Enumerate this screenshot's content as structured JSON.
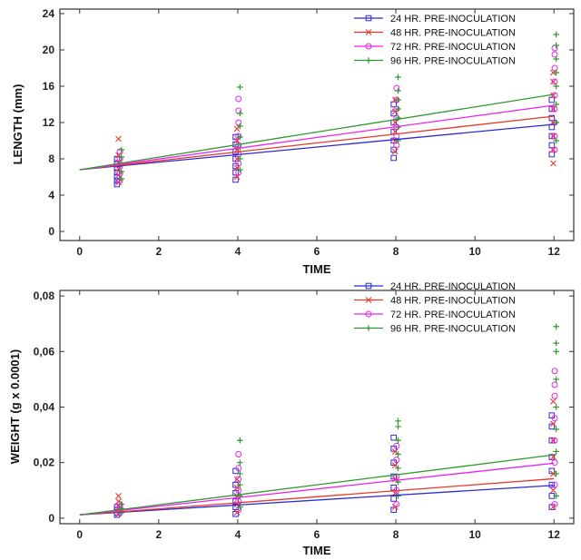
{
  "chart_data": [
    {
      "type": "scatter",
      "title": "",
      "xlabel": "TIME",
      "ylabel": "LENGTH (mm)",
      "xlim": [
        -0.5,
        12.5
      ],
      "ylim": [
        -1,
        24.5
      ],
      "xticks": [
        "0",
        "2",
        "4",
        "6",
        "8",
        "10",
        "12"
      ],
      "yticks": [
        "0",
        "4",
        "8",
        "12",
        "16",
        "20",
        "24"
      ],
      "legend_position": "top-right",
      "x_groups": [
        1,
        4,
        8,
        12
      ],
      "series": [
        {
          "name": "24 HR. PRE-INOCULATION",
          "color": "#2b2bd6",
          "marker": "square",
          "fit": {
            "x": [
              0,
              12
            ],
            "y": [
              6.8,
              11.8
            ]
          },
          "points": {
            "1": [
              5.2,
              5.6,
              6.0,
              6.5,
              7.0,
              7.4,
              8.0
            ],
            "4": [
              5.7,
              6.5,
              7.2,
              8.0,
              8.8,
              9.6,
              10.4
            ],
            "8": [
              8.1,
              9.0,
              10.0,
              11.0,
              12.0,
              13.0,
              14.0
            ],
            "12": [
              8.5,
              9.5,
              10.5,
              11.5,
              12.5,
              13.5,
              14.5
            ]
          }
        },
        {
          "name": "48 HR. PRE-INOCULATION",
          "color": "#e8382a",
          "marker": "x",
          "fit": {
            "x": [
              0,
              12
            ],
            "y": [
              6.8,
              12.7
            ]
          },
          "points": {
            "1": [
              5.4,
              6.2,
              6.9,
              7.6,
              8.4,
              10.2
            ],
            "4": [
              6.0,
              7.0,
              8.0,
              9.0,
              10.0,
              11.3
            ],
            "8": [
              8.8,
              10.0,
              11.0,
              12.0,
              13.2,
              14.5
            ],
            "12": [
              7.5,
              9.0,
              10.5,
              12.0,
              13.5,
              15.0,
              16.5,
              17.5
            ]
          }
        },
        {
          "name": "72 HR. PRE-INOCULATION",
          "color": "#ee22ee",
          "marker": "circle",
          "fit": {
            "x": [
              0,
              12
            ],
            "y": [
              6.8,
              13.9
            ]
          },
          "points": {
            "1": [
              5.6,
              6.4,
              7.2,
              8.0,
              8.8
            ],
            "4": [
              6.5,
              7.5,
              8.5,
              9.5,
              10.5,
              12.0,
              13.3,
              14.6
            ],
            "8": [
              9.5,
              10.5,
              11.5,
              12.5,
              13.5,
              14.5,
              15.8
            ],
            "12": [
              9.0,
              10.5,
              12.0,
              13.5,
              15.0,
              16.5,
              18.0,
              19.5,
              20.2
            ]
          }
        },
        {
          "name": "96 HR. PRE-INOCULATION",
          "color": "#2e9a2e",
          "marker": "plus",
          "fit": {
            "x": [
              0,
              12
            ],
            "y": [
              6.8,
              15.1
            ]
          },
          "points": {
            "1": [
              5.8,
              6.6,
              7.4,
              8.2,
              9.0
            ],
            "4": [
              6.8,
              8.0,
              9.2,
              10.4,
              11.6,
              13.0,
              15.9
            ],
            "8": [
              10.0,
              11.5,
              12.5,
              13.5,
              14.5,
              15.5,
              17.0
            ],
            "12": [
              10.0,
              12.0,
              14.0,
              16.0,
              17.5,
              19.0,
              20.5,
              21.7
            ]
          }
        }
      ]
    },
    {
      "type": "scatter",
      "title": "",
      "xlabel": "TIME",
      "ylabel": "WEIGHT (g x 0.0001)",
      "xlim": [
        -0.5,
        12.5
      ],
      "ylim": [
        -0.002,
        0.082
      ],
      "xticks": [
        "0",
        "2",
        "4",
        "6",
        "8",
        "10",
        "12"
      ],
      "yticks": [
        "0",
        "0,02",
        "0,04",
        "0,06",
        "0,08"
      ],
      "legend_position": "top-right",
      "x_groups": [
        1,
        4,
        8,
        12
      ],
      "series": [
        {
          "name": "24 HR. PRE-INOCULATION",
          "color": "#2b2bd6",
          "marker": "square",
          "fit": {
            "x": [
              0,
              12
            ],
            "y": [
              0.0012,
              0.0118
            ]
          },
          "points": {
            "1": [
              0.0012,
              0.002,
              0.003,
              0.004
            ],
            "4": [
              0.0015,
              0.004,
              0.006,
              0.009,
              0.012,
              0.017
            ],
            "8": [
              0.003,
              0.007,
              0.011,
              0.015,
              0.02,
              0.025,
              0.029
            ],
            "12": [
              0.004,
              0.008,
              0.012,
              0.017,
              0.022,
              0.028,
              0.033,
              0.037
            ]
          }
        },
        {
          "name": "48 HR. PRE-INOCULATION",
          "color": "#e8382a",
          "marker": "x",
          "fit": {
            "x": [
              0,
              12
            ],
            "y": [
              0.0012,
              0.0142
            ]
          },
          "points": {
            "1": [
              0.0015,
              0.003,
              0.0045,
              0.006,
              0.008
            ],
            "4": [
              0.002,
              0.005,
              0.008,
              0.011,
              0.014
            ],
            "8": [
              0.004,
              0.009,
              0.014,
              0.019,
              0.024
            ],
            "12": [
              0.004,
              0.01,
              0.016,
              0.022,
              0.028,
              0.034,
              0.042
            ]
          }
        },
        {
          "name": "72 HR. PRE-INOCULATION",
          "color": "#ee22ee",
          "marker": "circle",
          "fit": {
            "x": [
              0,
              12
            ],
            "y": [
              0.0012,
              0.0198
            ]
          },
          "points": {
            "1": [
              0.002,
              0.003,
              0.004,
              0.005
            ],
            "4": [
              0.003,
              0.006,
              0.01,
              0.014,
              0.018,
              0.023
            ],
            "8": [
              0.005,
              0.01,
              0.015,
              0.021,
              0.026
            ],
            "12": [
              0.005,
              0.012,
              0.02,
              0.028,
              0.036,
              0.044,
              0.048,
              0.053
            ]
          }
        },
        {
          "name": "96 HR. PRE-INOCULATION",
          "color": "#2e9a2e",
          "marker": "plus",
          "fit": {
            "x": [
              0,
              12
            ],
            "y": [
              0.0012,
              0.0228
            ]
          },
          "points": {
            "1": [
              0.002,
              0.0035,
              0.005
            ],
            "4": [
              0.004,
              0.008,
              0.012,
              0.016,
              0.02,
              0.028
            ],
            "8": [
              0.008,
              0.013,
              0.018,
              0.023,
              0.028,
              0.033,
              0.035
            ],
            "12": [
              0.008,
              0.016,
              0.024,
              0.032,
              0.04,
              0.05,
              0.06,
              0.063,
              0.069
            ]
          }
        }
      ]
    }
  ]
}
